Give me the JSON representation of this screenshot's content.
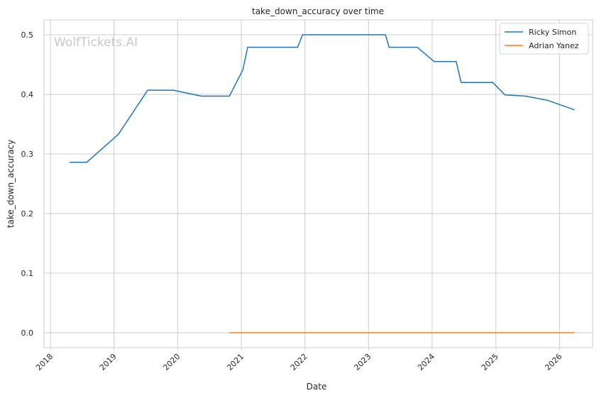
{
  "chart_data": {
    "type": "line",
    "title": "take_down_accuracy over time",
    "xlabel": "Date",
    "ylabel": "take_down_accuracy",
    "watermark": "WolfTickets.AI",
    "x_ticks": [
      "2018",
      "2019",
      "2020",
      "2021",
      "2022",
      "2023",
      "2024",
      "2025",
      "2026"
    ],
    "y_ticks": [
      "0.0",
      "0.1",
      "0.2",
      "0.3",
      "0.4",
      "0.5"
    ],
    "xlim": [
      "2017-11-25",
      "2026-07-10"
    ],
    "ylim": [
      -0.025,
      0.525
    ],
    "grid": true,
    "legend": "top-right",
    "series": [
      {
        "name": "Ricky Simon",
        "color": "#1f77b4",
        "points": [
          [
            "2018-04-21",
            0.286
          ],
          [
            "2018-07-28",
            0.286
          ],
          [
            "2019-01-26",
            0.333
          ],
          [
            "2019-07-13",
            0.407
          ],
          [
            "2019-12-07",
            0.407
          ],
          [
            "2020-05-16",
            0.397
          ],
          [
            "2020-10-24",
            0.397
          ],
          [
            "2021-01-09",
            0.441
          ],
          [
            "2021-02-06",
            0.479
          ],
          [
            "2021-11-20",
            0.479
          ],
          [
            "2021-12-18",
            0.5
          ],
          [
            "2023-04-08",
            0.5
          ],
          [
            "2023-04-29",
            0.479
          ],
          [
            "2023-10-07",
            0.479
          ],
          [
            "2024-01-13",
            0.455
          ],
          [
            "2024-05-18",
            0.455
          ],
          [
            "2024-06-15",
            0.42
          ],
          [
            "2024-12-14",
            0.42
          ],
          [
            "2025-02-22",
            0.399
          ],
          [
            "2025-06-21",
            0.397
          ],
          [
            "2025-10-25",
            0.39
          ],
          [
            "2026-03-28",
            0.374
          ]
        ]
      },
      {
        "name": "Adrian Yanez",
        "color": "#ff7f0e",
        "points": [
          [
            "2020-10-24",
            0.0
          ],
          [
            "2026-03-28",
            0.0
          ]
        ]
      }
    ]
  }
}
